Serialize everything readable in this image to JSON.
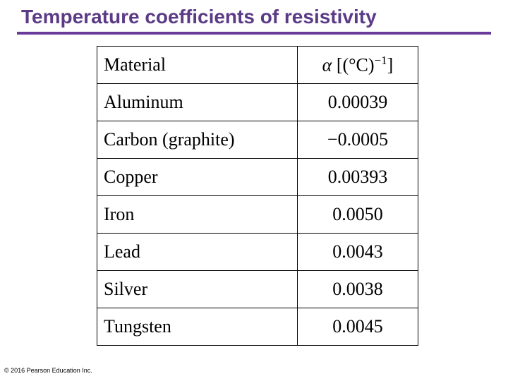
{
  "title": "Temperature coefficients of resistivity",
  "table": {
    "header": {
      "material": "Material",
      "alpha_symbol": "α",
      "alpha_units_prefix": " [(°C)",
      "alpha_units_exponent": "−1",
      "alpha_units_suffix": "]"
    },
    "rows": [
      {
        "material": "Aluminum",
        "alpha": "0.00039"
      },
      {
        "material": "Carbon (graphite)",
        "alpha": "−0.0005"
      },
      {
        "material": "Copper",
        "alpha": "0.00393"
      },
      {
        "material": "Iron",
        "alpha": "0.0050"
      },
      {
        "material": "Lead",
        "alpha": "0.0043"
      },
      {
        "material": "Silver",
        "alpha": "0.0038"
      },
      {
        "material": "Tungsten",
        "alpha": "0.0045"
      }
    ]
  },
  "footer": {
    "copyright": "© 2016 Pearson Education Inc."
  },
  "colors": {
    "title": "#5b3b86",
    "rule": "#6a3a9a"
  }
}
